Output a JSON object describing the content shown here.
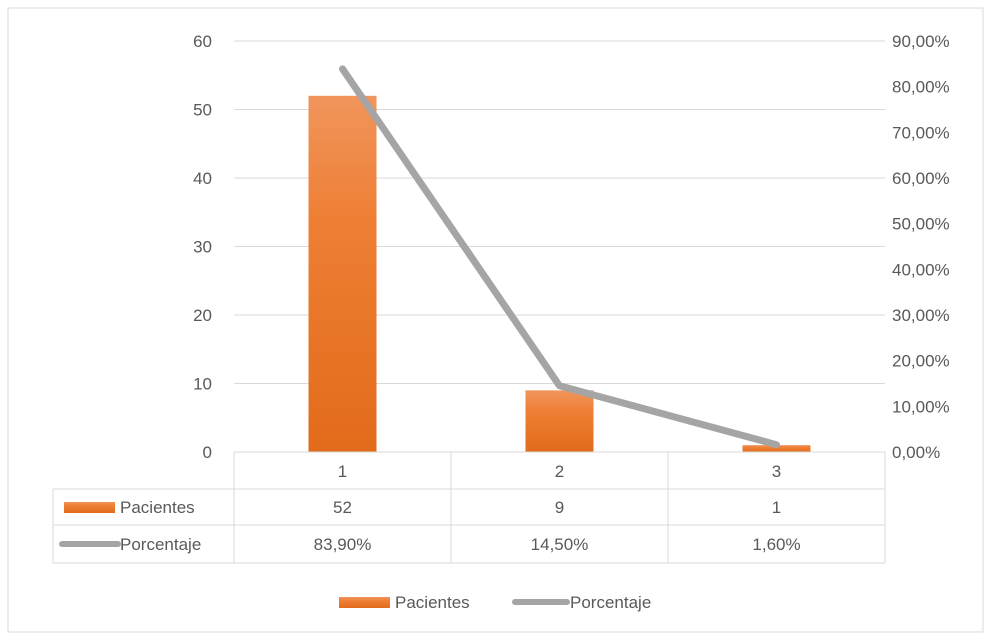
{
  "chart_data": {
    "type": "bar",
    "categories": [
      "1",
      "2",
      "3"
    ],
    "series": [
      {
        "name": "Pacientes",
        "kind": "bar",
        "axis": "left",
        "values": [
          52,
          9,
          1
        ],
        "labels": [
          "52",
          "9",
          "1"
        ],
        "color": "#ED7D31"
      },
      {
        "name": "Porcentaje",
        "kind": "line",
        "axis": "right",
        "values": [
          83.9,
          14.5,
          1.6
        ],
        "labels": [
          "83,90%",
          "14,50%",
          "1,60%"
        ],
        "color": "#A5A5A5"
      }
    ],
    "y_left": {
      "range": [
        0,
        60
      ],
      "ticks": [
        0,
        10,
        20,
        30,
        40,
        50,
        60
      ],
      "tick_labels": [
        "0",
        "10",
        "20",
        "30",
        "40",
        "50",
        "60"
      ]
    },
    "y_right": {
      "range": [
        0,
        90
      ],
      "ticks": [
        0,
        10,
        20,
        30,
        40,
        50,
        60,
        70,
        80,
        90
      ],
      "tick_labels": [
        "0,00%",
        "10,00%",
        "20,00%",
        "30,00%",
        "40,00%",
        "50,00%",
        "60,00%",
        "70,00%",
        "80,00%",
        "90,00%"
      ]
    },
    "grid": true,
    "data_table": true,
    "legend": {
      "position": "bottom",
      "entries": [
        "Pacientes",
        "Porcentaje"
      ]
    }
  }
}
